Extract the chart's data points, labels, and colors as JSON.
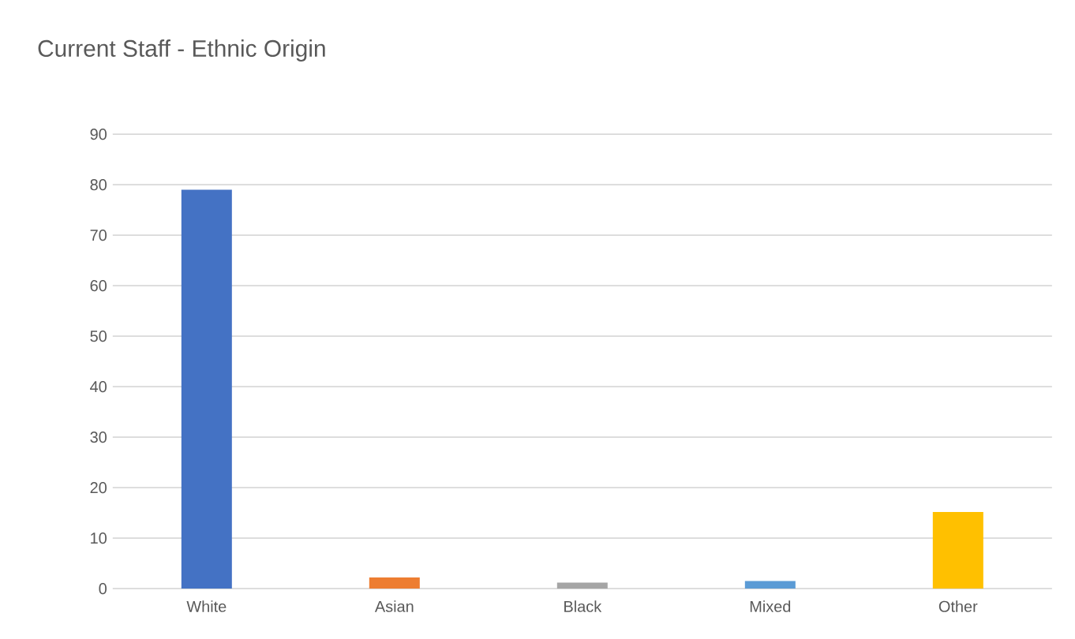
{
  "chart_data": {
    "type": "bar",
    "title": "Current Staff - Ethnic Origin",
    "categories": [
      "White",
      "Asian",
      "Black",
      "Mixed",
      "Other"
    ],
    "values": [
      79,
      2.2,
      1.2,
      1.5,
      15.2
    ],
    "colors": [
      "#4472c4",
      "#ed7d31",
      "#a5a5a5",
      "#5b9bd5",
      "#ffc000"
    ],
    "ylim": [
      0,
      90
    ],
    "yticks": [
      0,
      10,
      20,
      30,
      40,
      50,
      60,
      70,
      80,
      90
    ],
    "grid": "y"
  }
}
